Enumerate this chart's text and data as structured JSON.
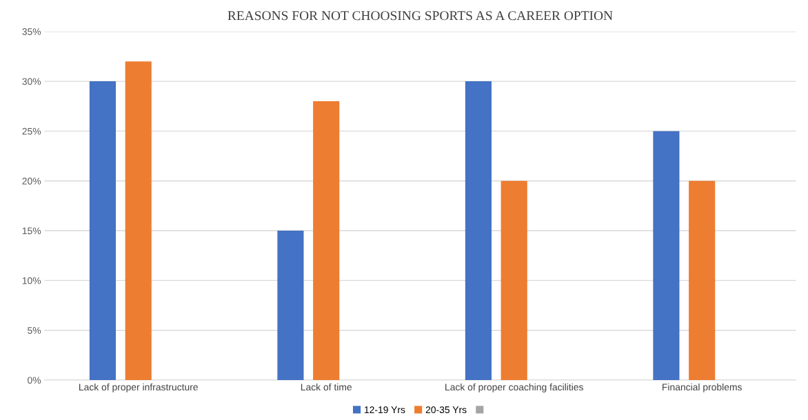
{
  "chart_data": {
    "type": "bar",
    "title": "REASONS FOR NOT CHOOSING SPORTS AS A CAREER OPTION",
    "categories": [
      "Lack of proper infrastructure",
      "Lack of time",
      "Lack of proper coaching facilities",
      "Financial problems"
    ],
    "series": [
      {
        "name": "12-19 Yrs",
        "color": "#4472c4",
        "values": [
          30,
          15,
          30,
          25
        ]
      },
      {
        "name": "20-35 Yrs",
        "color": "#ed7d31",
        "values": [
          32,
          28,
          20,
          20
        ]
      },
      {
        "color": "#a5a5a5",
        "values": [
          null,
          null,
          null,
          null
        ]
      }
    ],
    "ylim": [
      0,
      35
    ],
    "yticks": [
      {
        "value": 0,
        "label": "0%"
      },
      {
        "value": 5,
        "label": "5%"
      },
      {
        "value": 10,
        "label": "10%"
      },
      {
        "value": 15,
        "label": "15%"
      },
      {
        "value": 20,
        "label": "20%"
      },
      {
        "value": 25,
        "label": "25%"
      },
      {
        "value": 30,
        "label": "30%"
      },
      {
        "value": 35,
        "label": "35%"
      }
    ],
    "grid": "y",
    "legend": "bottom"
  }
}
